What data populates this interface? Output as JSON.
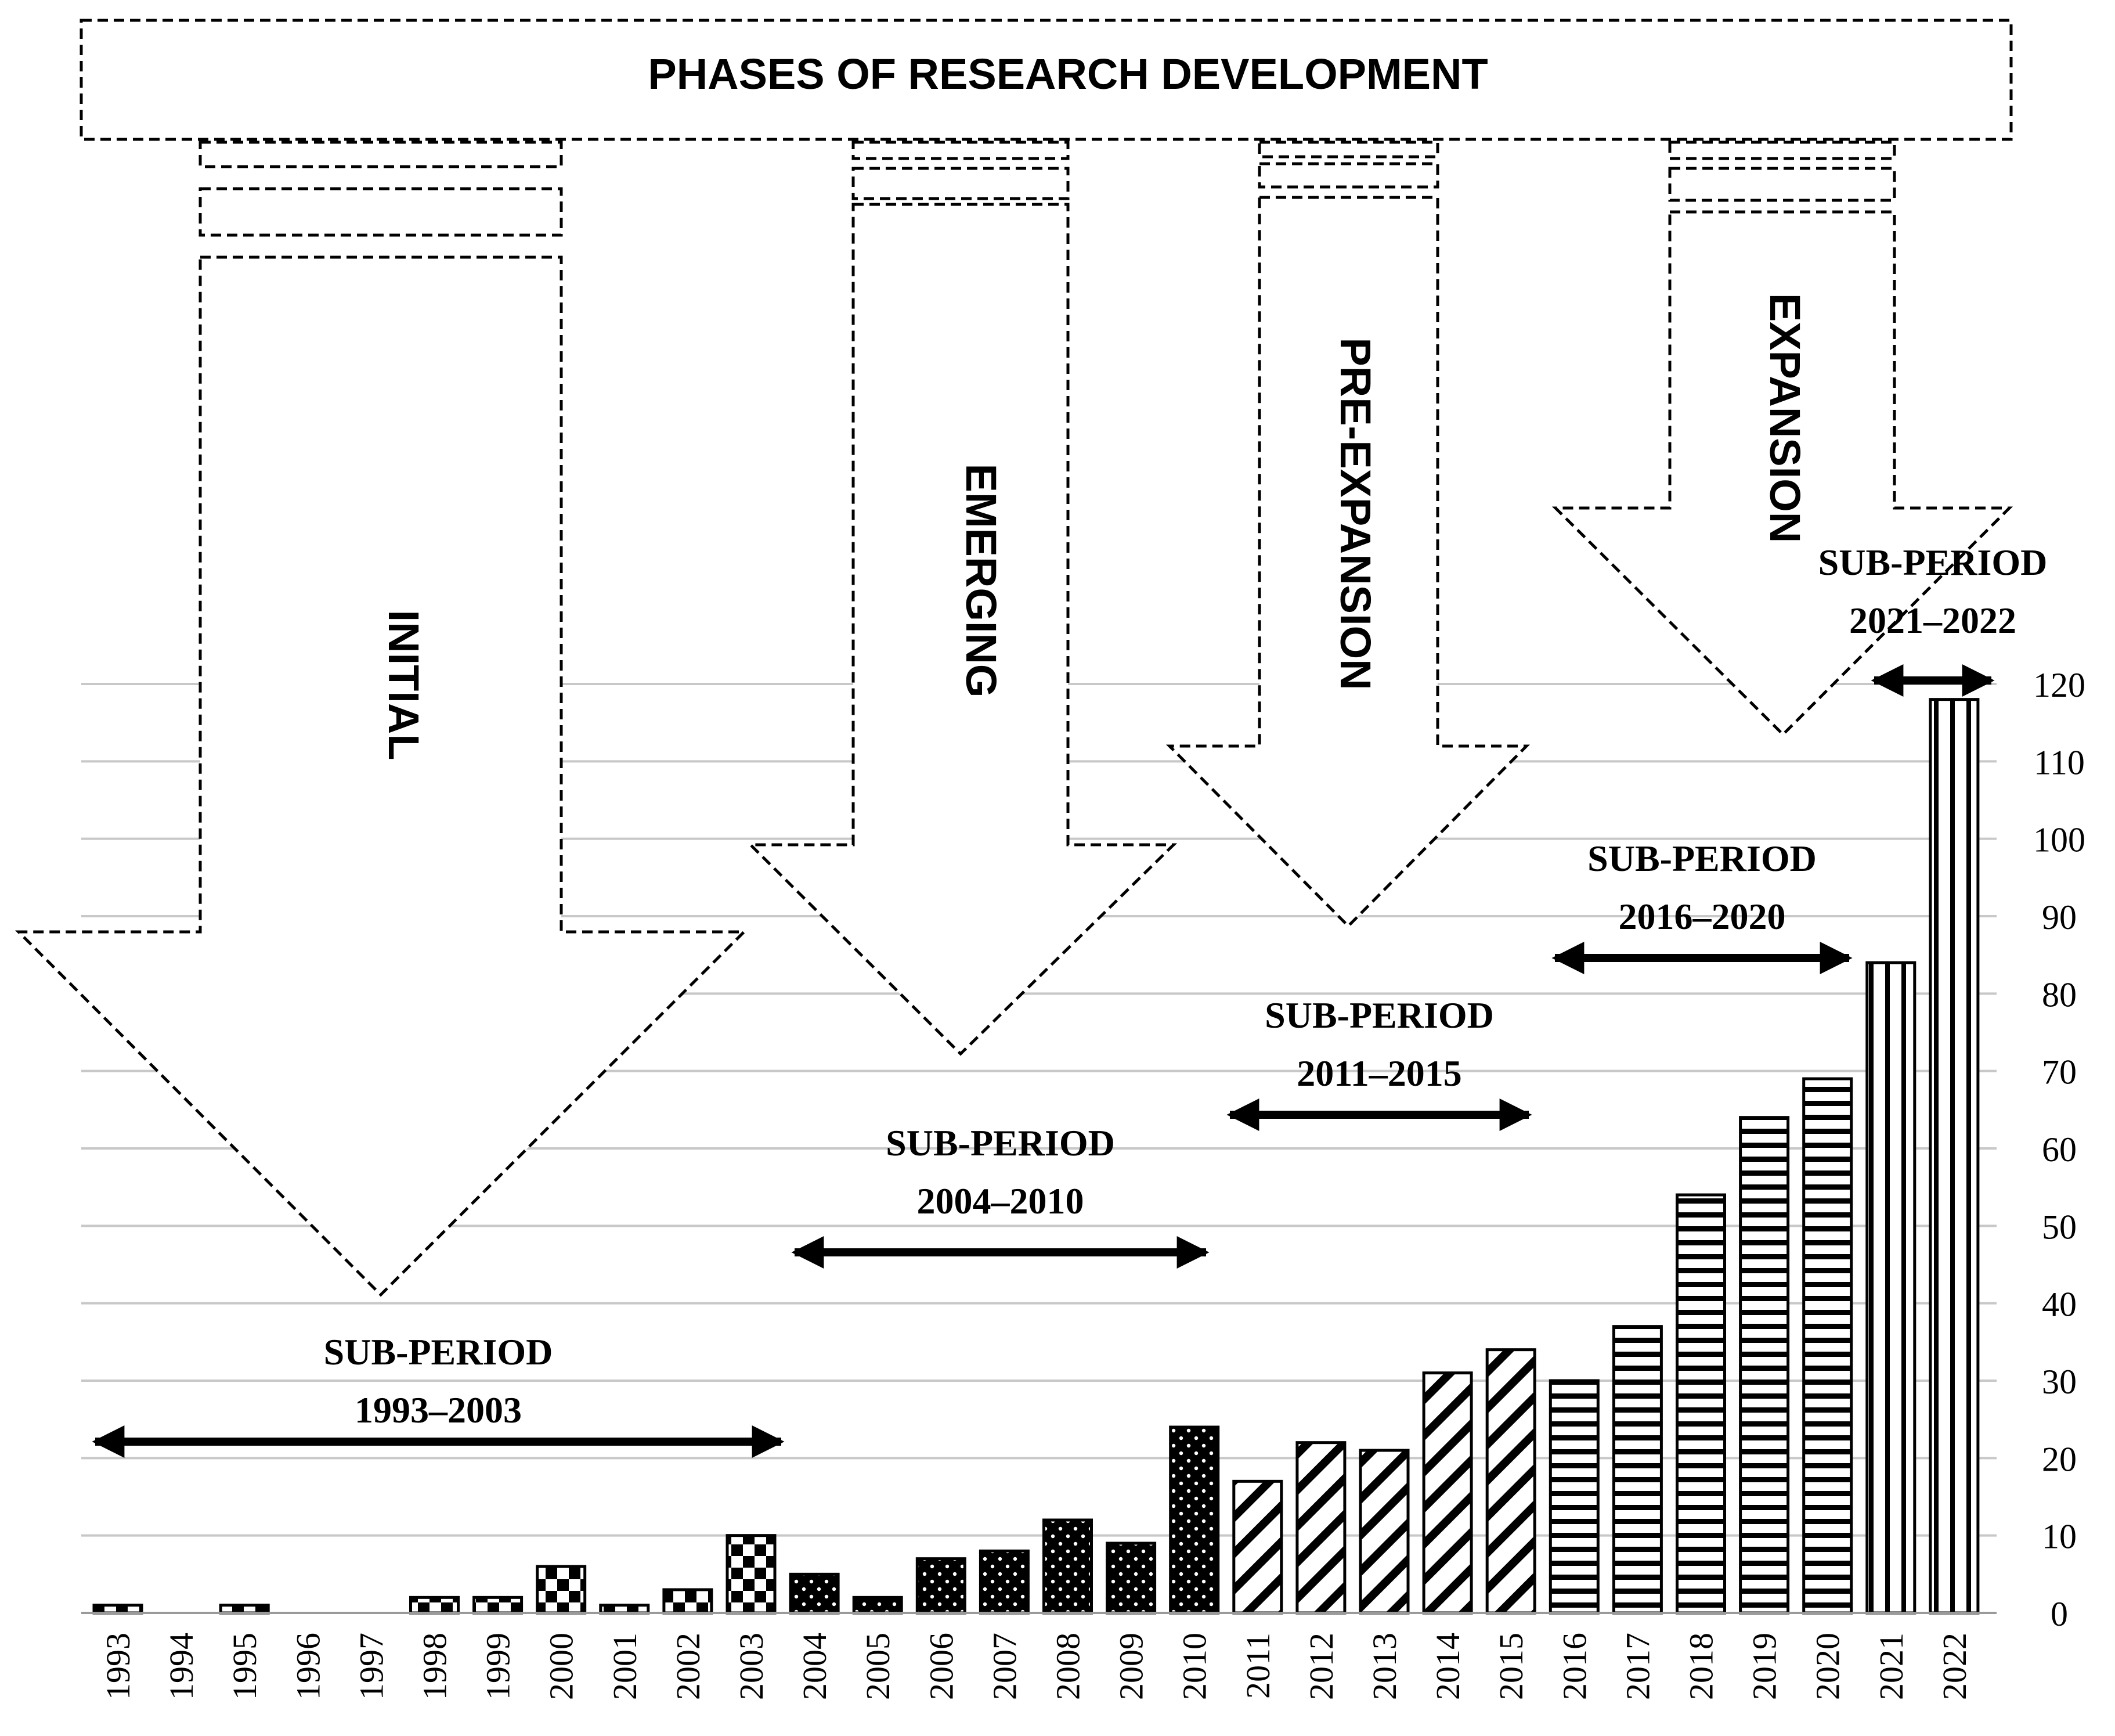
{
  "chart_data": {
    "type": "bar",
    "title": "PHASES OF RESEARCH DEVELOPMENT",
    "xlabel": "",
    "ylabel": "",
    "ylim": [
      0,
      120
    ],
    "yticks": [
      0,
      10,
      20,
      30,
      40,
      50,
      60,
      70,
      80,
      90,
      100,
      110,
      120
    ],
    "y_axis_side": "right",
    "grid": true,
    "categories": [
      "1993",
      "1994",
      "1995",
      "1996",
      "1997",
      "1998",
      "1999",
      "2000",
      "2001",
      "2002",
      "2003",
      "2004",
      "2005",
      "2006",
      "2007",
      "2008",
      "2009",
      "2010",
      "2011",
      "2012",
      "2013",
      "2014",
      "2015",
      "2016",
      "2017",
      "2018",
      "2019",
      "2020",
      "2021",
      "2022"
    ],
    "values": [
      1,
      0,
      1,
      0,
      0,
      2,
      2,
      6,
      1,
      3,
      10,
      5,
      2,
      7,
      8,
      12,
      9,
      24,
      17,
      22,
      21,
      31,
      34,
      30,
      37,
      54,
      64,
      69,
      84,
      118
    ],
    "patterns": [
      "checker",
      "checker",
      "checker",
      "checker",
      "checker",
      "checker",
      "checker",
      "checker",
      "checker",
      "checker",
      "checker",
      "dots",
      "dots",
      "dots",
      "dots",
      "dots",
      "dots",
      "dots",
      "diagonal",
      "diagonal",
      "diagonal",
      "diagonal",
      "diagonal",
      "horizontal",
      "horizontal",
      "horizontal",
      "horizontal",
      "horizontal",
      "vertical",
      "vertical"
    ],
    "phases": [
      {
        "name": "INITIAL"
      },
      {
        "name": "EMERGING"
      },
      {
        "name": "PRE-EXPANSION"
      },
      {
        "name": "EXPANSION"
      }
    ],
    "sub_periods": [
      {
        "label": "SUB-PERIOD",
        "range": "1993–2003",
        "from": "1993",
        "to": "2003"
      },
      {
        "label": "SUB-PERIOD",
        "range": "2004–2010",
        "from": "2004",
        "to": "2010"
      },
      {
        "label": "SUB-PERIOD",
        "range": "2011–2015",
        "from": "2011",
        "to": "2015"
      },
      {
        "label": "SUB-PERIOD",
        "range": "2016–2020",
        "from": "2016",
        "to": "2020"
      },
      {
        "label": "SUB-PERIOD",
        "range": "2021–2022",
        "from": "2021",
        "to": "2022"
      }
    ]
  }
}
